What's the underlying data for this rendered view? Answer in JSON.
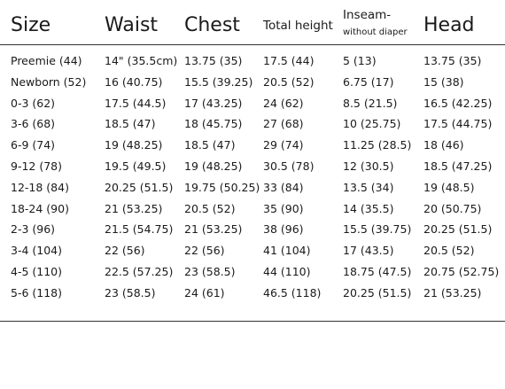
{
  "headers": {
    "size": "Size",
    "waist": "Waist",
    "chest": "Chest",
    "total_height": "Total height",
    "inseam": "Inseam-",
    "inseam_sub": "without diaper",
    "head": "Head"
  },
  "rows": [
    [
      "Preemie (44)",
      "14\" (35.5cm)",
      "13.75 (35)",
      "17.5 (44)",
      "5 (13)",
      "13.75 (35)"
    ],
    [
      "Newborn (52)",
      "16 (40.75)",
      "15.5 (39.25)",
      "20.5 (52)",
      "6.75 (17)",
      "15 (38)"
    ],
    [
      "0-3 (62)",
      "17.5 (44.5)",
      "17 (43.25)",
      "24 (62)",
      "8.5 (21.5)",
      "16.5 (42.25)"
    ],
    [
      "3-6 (68)",
      "18.5 (47)",
      "18 (45.75)",
      "27 (68)",
      "10 (25.75)",
      "17.5 (44.75)"
    ],
    [
      "6-9 (74)",
      "19 (48.25)",
      "18.5 (47)",
      "29 (74)",
      "11.25 (28.5)",
      "18 (46)"
    ],
    [
      "9-12 (78)",
      "19.5 (49.5)",
      "19 (48.25)",
      "30.5 (78)",
      "12 (30.5)",
      "18.5 (47.25)"
    ],
    [
      "12-18 (84)",
      "20.25 (51.5)",
      "19.75 (50.25)",
      "33 (84)",
      "13.5 (34)",
      "19 (48.5)"
    ],
    [
      "18-24 (90)",
      "21 (53.25)",
      "20.5 (52)",
      "35 (90)",
      "14 (35.5)",
      "20 (50.75)"
    ],
    [
      "2-3 (96)",
      "21.5 (54.75)",
      "21 (53.25)",
      "38 (96)",
      "15.5 (39.75)",
      "20.25 (51.5)"
    ],
    [
      "3-4 (104)",
      "22 (56)",
      "22 (56)",
      "41 (104)",
      "17 (43.5)",
      "20.5 (52)"
    ],
    [
      "4-5 (110)",
      "22.5 (57.25)",
      "23 (58.5)",
      "44 (110)",
      "18.75 (47.5)",
      "20.75 (52.75)"
    ],
    [
      "5-6 (118)",
      "23 (58.5)",
      "24 (61)",
      "46.5 (118)",
      "20.25 (51.5)",
      "21 (53.25)"
    ]
  ]
}
